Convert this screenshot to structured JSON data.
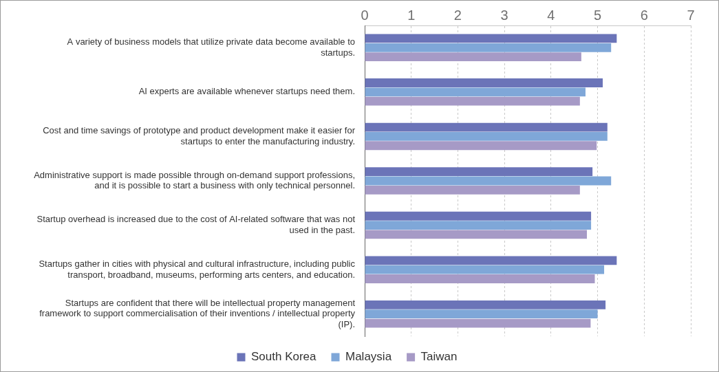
{
  "chart_data": {
    "type": "bar",
    "orientation": "horizontal",
    "categories": [
      "A variety of business models that utilize private data become available to startups.",
      "AI experts are available whenever startups need them.",
      "Cost and time savings of prototype and product development make it easier for startups to enter the manufacturing industry.",
      "Administrative support is made possible through on-demand support professions, and it is possible to start a business with only technical personnel.",
      "Startup overhead is increased due to the cost of AI-related software that was not used in the past.",
      "Startups gather in cities with physical and cultural infrastructure, including public transport, broadband, museums, performing arts centers, and education.",
      "Startups are confident that there will be intellectual property management framework to support commercialisation of their inventions / intellectual property (IP)."
    ],
    "series": [
      {
        "name": "South Korea",
        "color": "#6b74b8",
        "values": [
          5.41,
          5.11,
          5.21,
          4.89,
          4.86,
          5.41,
          5.17
        ]
      },
      {
        "name": "Malaysia",
        "color": "#7fa7d8",
        "values": [
          5.29,
          4.74,
          5.21,
          5.29,
          4.86,
          5.14,
          5.0
        ]
      },
      {
        "name": "Taiwan",
        "color": "#a69ac6",
        "values": [
          4.65,
          4.62,
          4.98,
          4.62,
          4.77,
          4.94,
          4.85
        ]
      }
    ],
    "xlim": [
      0,
      7
    ],
    "xticks": [
      0,
      1,
      2,
      3,
      4,
      5,
      6,
      7
    ],
    "grid": true,
    "legend": "bottom"
  }
}
